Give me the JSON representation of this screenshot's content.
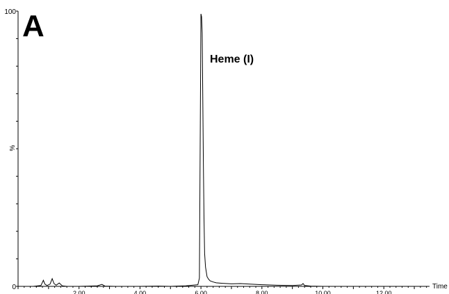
{
  "chart_data": {
    "type": "line",
    "panel_label": "A",
    "annotation": "Heme (I)",
    "xlabel": "Time",
    "ylabel": "%",
    "xlim": [
      0.0,
      13.5
    ],
    "ylim": [
      0,
      100
    ],
    "x_ticks": [
      {
        "value": 2,
        "label": "2.00"
      },
      {
        "value": 4,
        "label": "4.00"
      },
      {
        "value": 6,
        "label": "6.00"
      },
      {
        "value": 8,
        "label": "8.00"
      },
      {
        "value": 10,
        "label": "10.00"
      },
      {
        "value": 12,
        "label": "12.00"
      }
    ],
    "y_ticks": [
      {
        "value": 0,
        "label": "0"
      },
      {
        "value": 100,
        "label": "100"
      }
    ],
    "series": [
      {
        "color": "#000000",
        "x": [
          0.05,
          0.5,
          0.75,
          0.83,
          0.88,
          0.95,
          1.05,
          1.12,
          1.18,
          1.25,
          1.35,
          1.45,
          1.6,
          2.0,
          2.6,
          2.75,
          2.85,
          3.2,
          4.0,
          4.6,
          5.0,
          5.5,
          5.9,
          5.95,
          5.98,
          6.0,
          6.02,
          6.04,
          6.06,
          6.08,
          6.1,
          6.12,
          6.15,
          6.2,
          6.25,
          6.3,
          6.4,
          6.5,
          6.7,
          7.0,
          7.3,
          7.6,
          8.0,
          8.5,
          9.0,
          9.3,
          9.35,
          9.4,
          9.6,
          10.0,
          11.0,
          12.0,
          13.0,
          13.4
        ],
        "y": [
          0,
          0,
          0.3,
          2.2,
          0.8,
          0.3,
          0.8,
          2.8,
          1.0,
          0.4,
          1.2,
          0.2,
          0,
          0,
          0.2,
          0.7,
          0.1,
          0,
          0,
          0.1,
          0,
          0.2,
          0.6,
          3.0,
          60.0,
          99.0,
          98.0,
          92.0,
          70.0,
          45.0,
          25.0,
          12.0,
          7.0,
          3.5,
          2.6,
          2.0,
          1.6,
          1.3,
          1.1,
          0.9,
          1.0,
          0.8,
          0.6,
          0.4,
          0.3,
          0.5,
          1.0,
          0.3,
          0.1,
          0,
          0,
          0,
          0,
          0
        ]
      }
    ]
  }
}
